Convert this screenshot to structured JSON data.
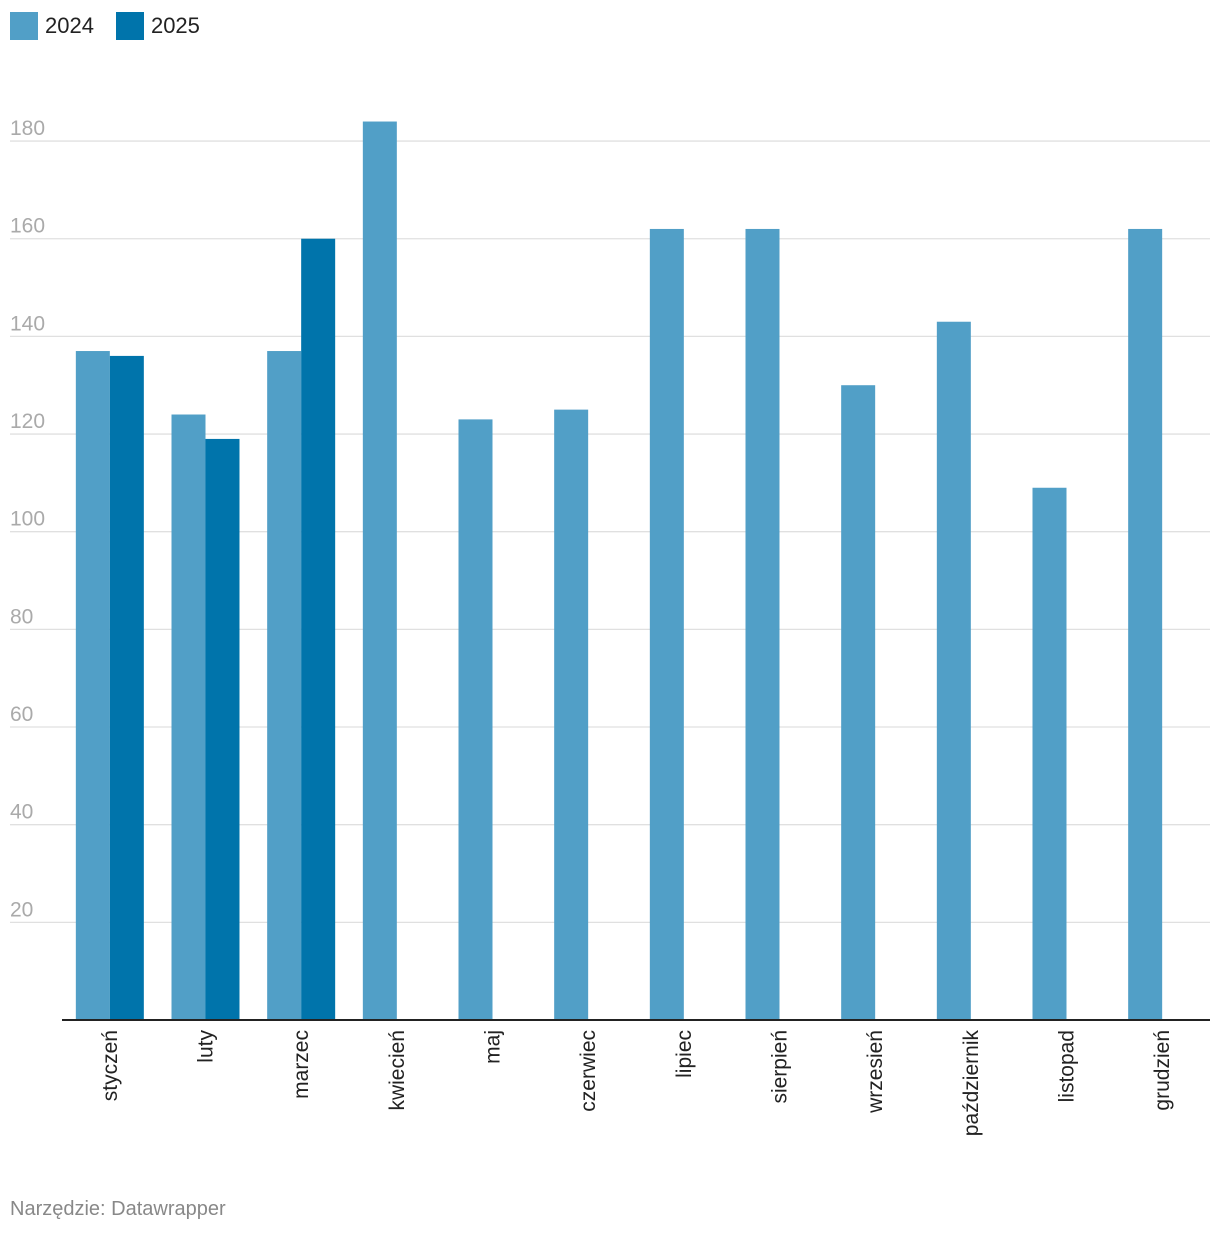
{
  "legend": {
    "items": [
      {
        "label": "2024",
        "color": "#519fc7"
      },
      {
        "label": "2025",
        "color": "#0074ab"
      }
    ]
  },
  "footer": {
    "source": "Narzędzie: Datawrapper"
  },
  "chart_data": {
    "type": "bar",
    "categories": [
      "styczeń",
      "luty",
      "marzec",
      "kwiecień",
      "maj",
      "czerwiec",
      "lipiec",
      "sierpień",
      "wrzesień",
      "październik",
      "listopad",
      "grudzień"
    ],
    "series": [
      {
        "name": "2024",
        "color": "#519fc7",
        "values": [
          137,
          124,
          137,
          184,
          123,
          125,
          162,
          162,
          130,
          143,
          109,
          162
        ]
      },
      {
        "name": "2025",
        "color": "#0074ab",
        "values": [
          136,
          119,
          160,
          null,
          null,
          null,
          null,
          null,
          null,
          null,
          null,
          null
        ]
      }
    ],
    "yticks": [
      20,
      40,
      60,
      80,
      100,
      120,
      140,
      160,
      180
    ],
    "ylim": [
      0,
      184
    ],
    "grid": true,
    "legend_position": "top-left",
    "xlabel": "",
    "ylabel": ""
  }
}
